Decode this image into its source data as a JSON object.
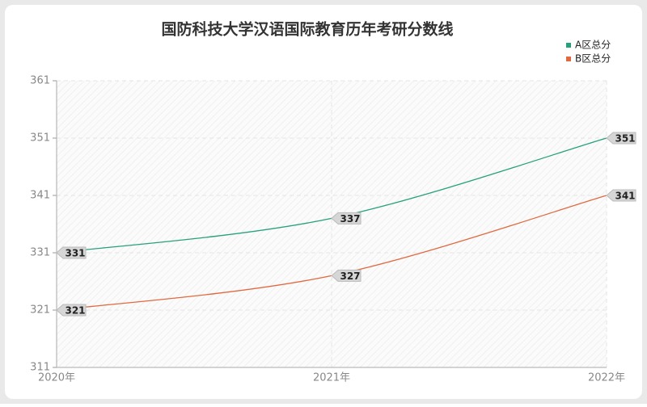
{
  "chart_data": {
    "type": "line",
    "title": "国防科技大学汉语国际教育历年考研分数线",
    "categories": [
      "2020年",
      "2021年",
      "2022年"
    ],
    "series": [
      {
        "name": "A区总分",
        "color": "#27a07c",
        "values": [
          331,
          337,
          351
        ]
      },
      {
        "name": "B区总分",
        "color": "#e0693f",
        "values": [
          321,
          327,
          341
        ]
      }
    ],
    "ylim": [
      311,
      361
    ],
    "yticks": [
      311,
      321,
      331,
      341,
      351,
      361
    ],
    "grid": true,
    "legend": "top-right"
  }
}
